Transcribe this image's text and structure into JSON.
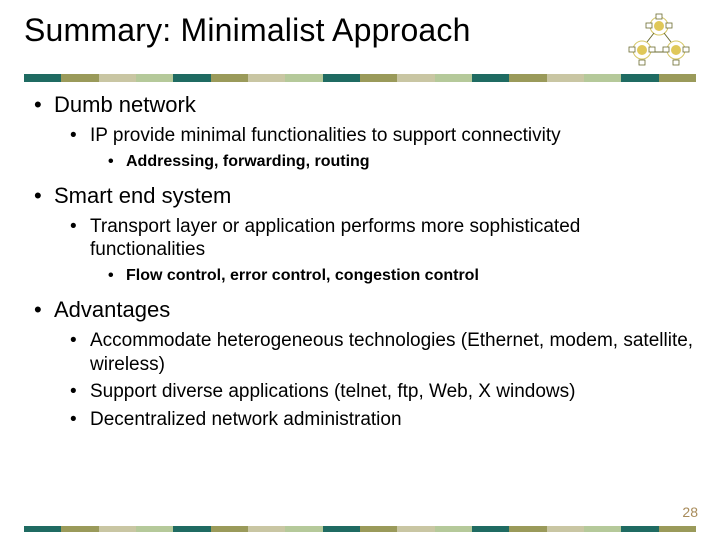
{
  "title": "Summary: Minimalist Approach",
  "page_number": "28",
  "divider_colors": [
    "#1f6b62",
    "#9a9a5a",
    "#c9c6a3",
    "#b5c99a",
    "#1f6b62",
    "#9a9a5a",
    "#c9c6a3",
    "#b5c99a",
    "#1f6b62",
    "#9a9a5a",
    "#c9c6a3",
    "#b5c99a",
    "#1f6b62",
    "#9a9a5a",
    "#c9c6a3",
    "#b5c99a",
    "#1f6b62",
    "#9a9a5a"
  ],
  "icon": {
    "node_fill": "#e0c859",
    "node_stroke": "#6b6b30",
    "ring_stroke": "#d6c766",
    "box_fill": "#ffffff",
    "box_stroke": "#6b6b30",
    "link_stroke": "#6b6b30"
  },
  "bullets": [
    {
      "text": "Dumb network",
      "children": [
        {
          "text": "IP provide minimal functionalities to support connectivity",
          "children": [
            {
              "text": "Addressing, forwarding, routing"
            }
          ]
        }
      ]
    },
    {
      "text": "Smart end system",
      "children": [
        {
          "text": "Transport layer or application performs more sophisticated functionalities",
          "children": [
            {
              "text": "Flow control, error control, congestion control"
            }
          ]
        }
      ]
    },
    {
      "text": "Advantages",
      "children": [
        {
          "text": "Accommodate heterogeneous technologies (Ethernet, modem, satellite, wireless)"
        },
        {
          "text": "Support diverse applications (telnet, ftp, Web, X windows)"
        },
        {
          "text": "Decentralized network administration"
        }
      ]
    }
  ]
}
